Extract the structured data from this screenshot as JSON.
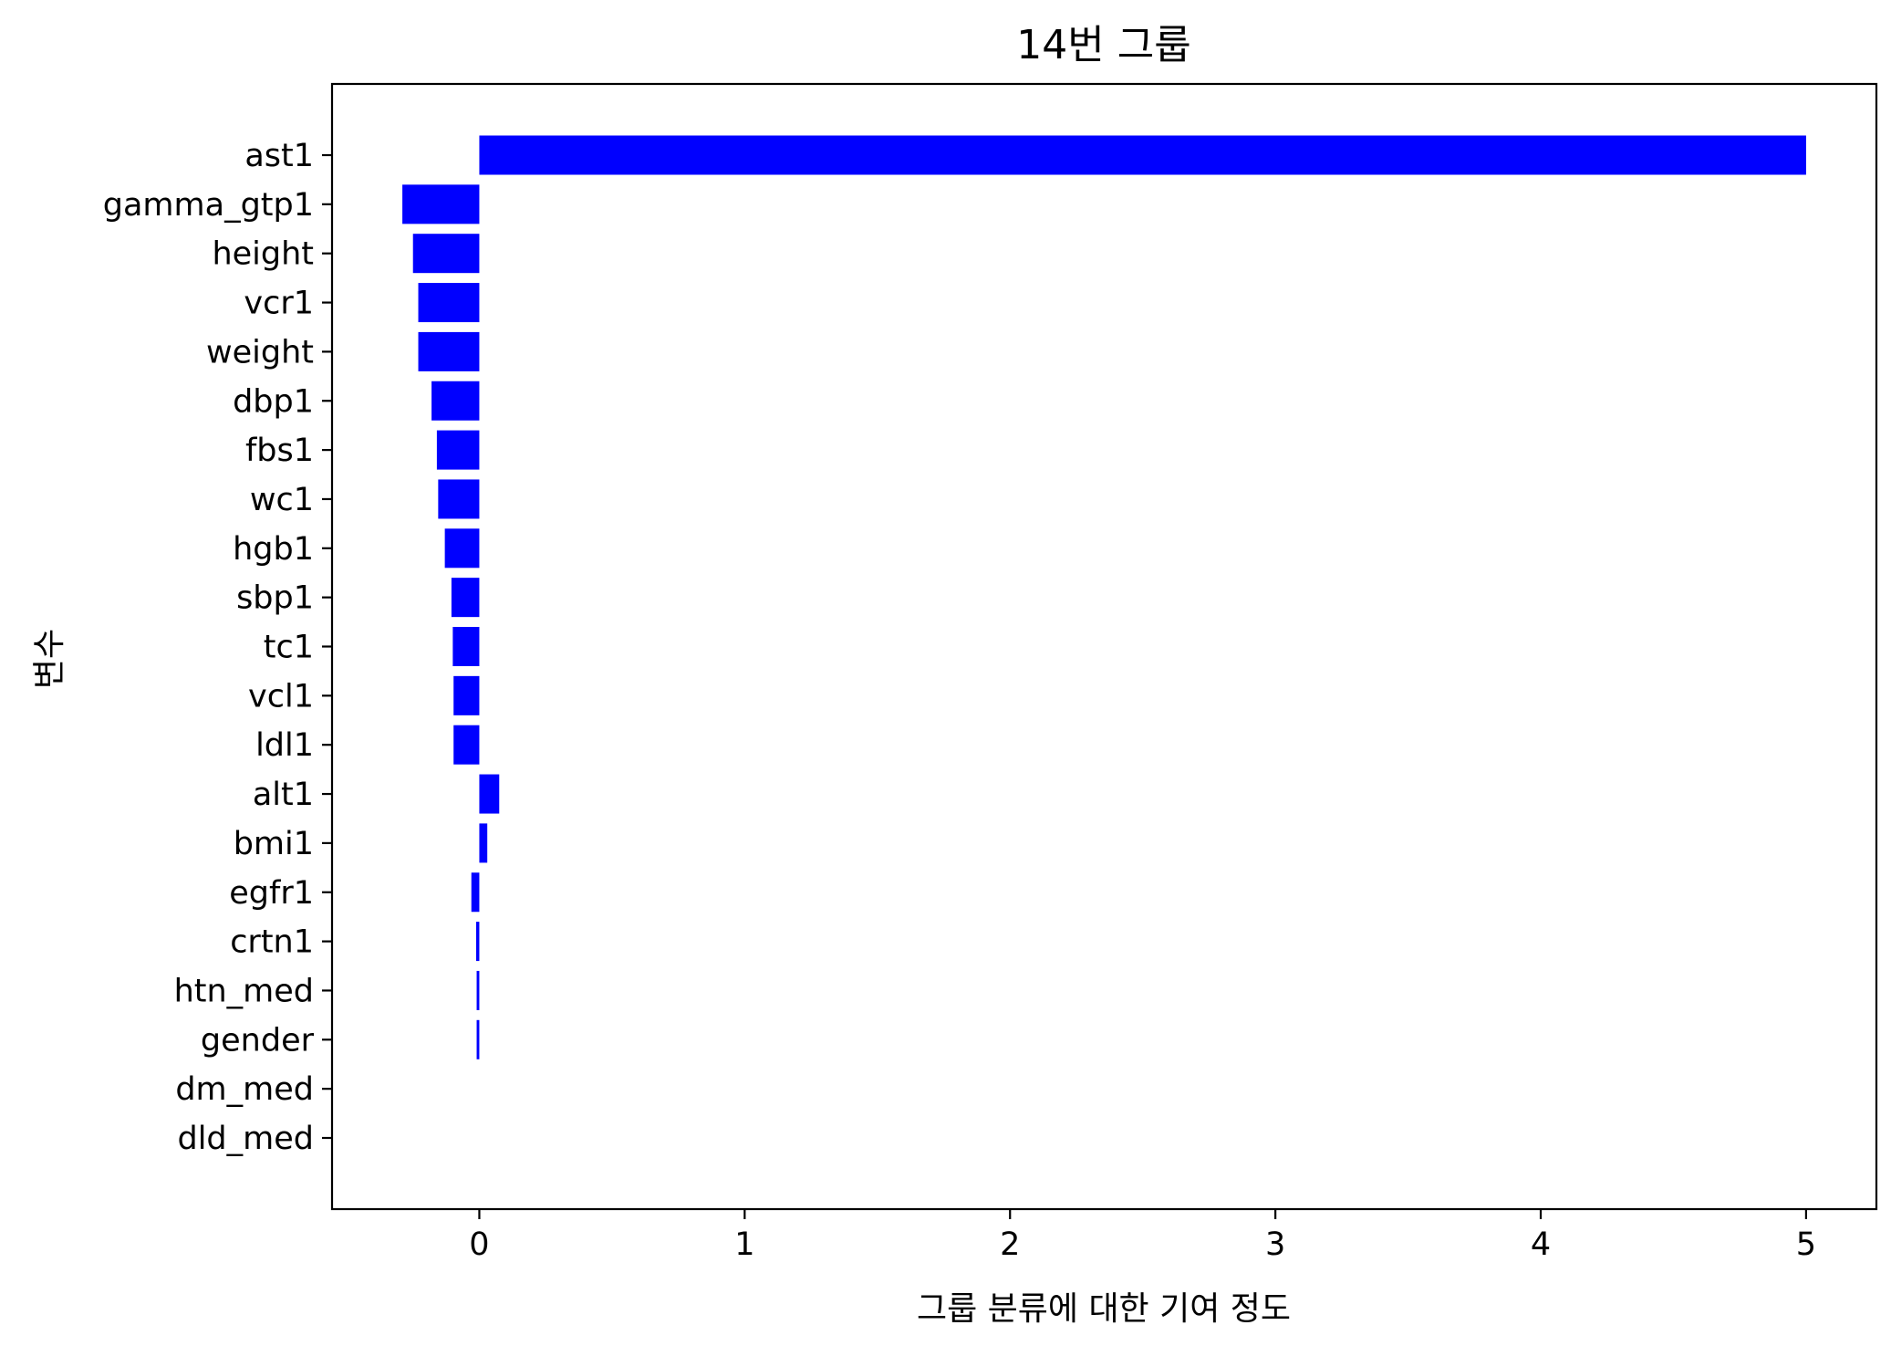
{
  "chart_data": {
    "type": "bar",
    "orientation": "horizontal",
    "title": "14번 그룹",
    "xlabel": "그룹 분류에 대한 기여 정도",
    "ylabel": "변수",
    "categories": [
      "ast1",
      "gamma_gtp1",
      "height",
      "vcr1",
      "weight",
      "dbp1",
      "fbs1",
      "wc1",
      "hgb1",
      "sbp1",
      "tc1",
      "vcl1",
      "ldl1",
      "alt1",
      "bmi1",
      "egfr1",
      "crtn1",
      "htn_med",
      "gender",
      "dm_med",
      "dld_med"
    ],
    "values": [
      5.0,
      -0.29,
      -0.25,
      -0.23,
      -0.23,
      -0.18,
      -0.16,
      -0.155,
      -0.13,
      -0.105,
      -0.1,
      -0.097,
      -0.097,
      0.075,
      0.03,
      -0.03,
      -0.012,
      -0.01,
      -0.01,
      0.0,
      0.0
    ],
    "xlim": [
      -0.555,
      5.265
    ],
    "xticks": [
      0,
      1,
      2,
      3,
      4,
      5
    ],
    "xtick_labels": [
      "0",
      "1",
      "2",
      "3",
      "4",
      "5"
    ],
    "grid": false,
    "legend": "none",
    "colors": {
      "bar": "#0000ff",
      "axes": "#000000",
      "background": "#ffffff"
    }
  }
}
